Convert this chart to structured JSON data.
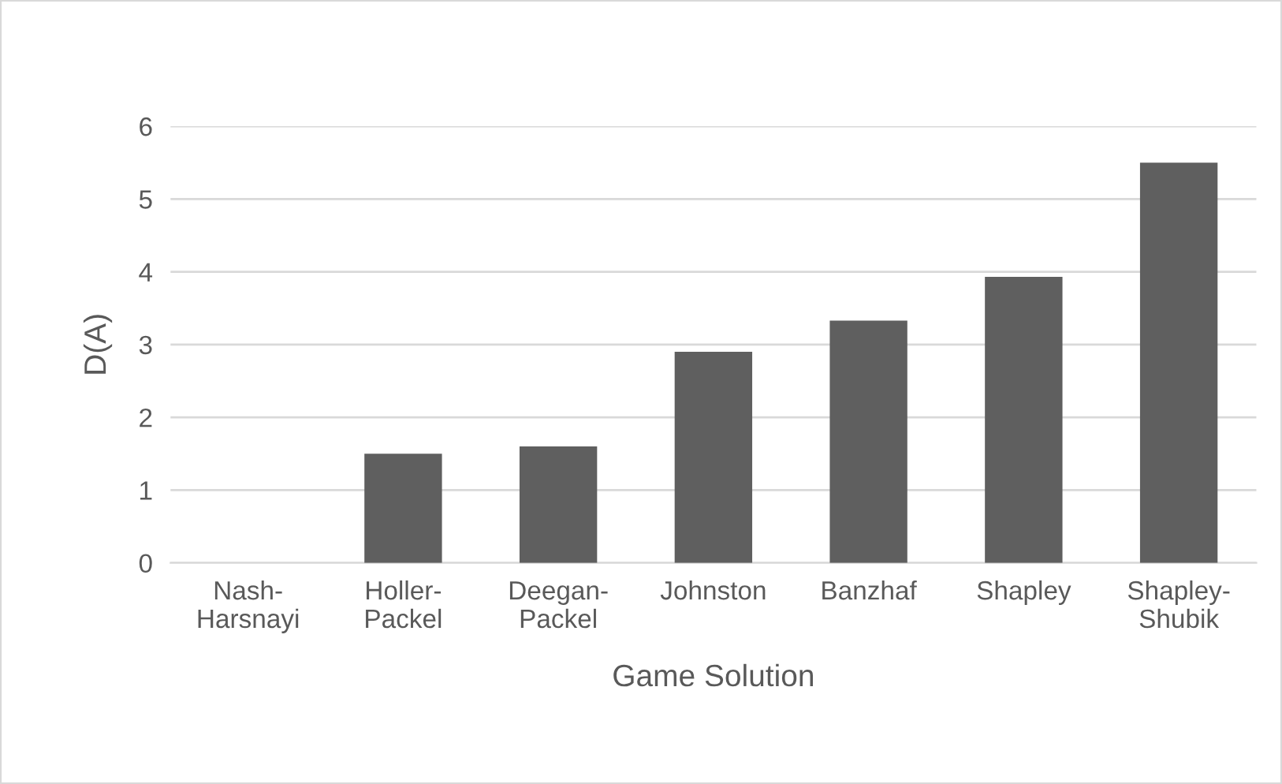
{
  "chart_data": {
    "type": "bar",
    "xlabel": "Game Solution",
    "ylabel": "D(A)",
    "categories": [
      "Nash-\nHarsnayi",
      "Holler-\nPackel",
      "Deegan-\nPackel",
      "Johnston",
      "Banzhaf",
      "Shapley",
      "Shapley-\nShubik"
    ],
    "values": [
      0,
      1.5,
      1.6,
      2.9,
      3.33,
      3.93,
      5.5
    ],
    "color": "#5f5f5f",
    "ylim": [
      0,
      6
    ],
    "yticks": [
      0,
      1,
      2,
      3,
      4,
      5,
      6
    ],
    "grid": "y",
    "legend": false
  }
}
